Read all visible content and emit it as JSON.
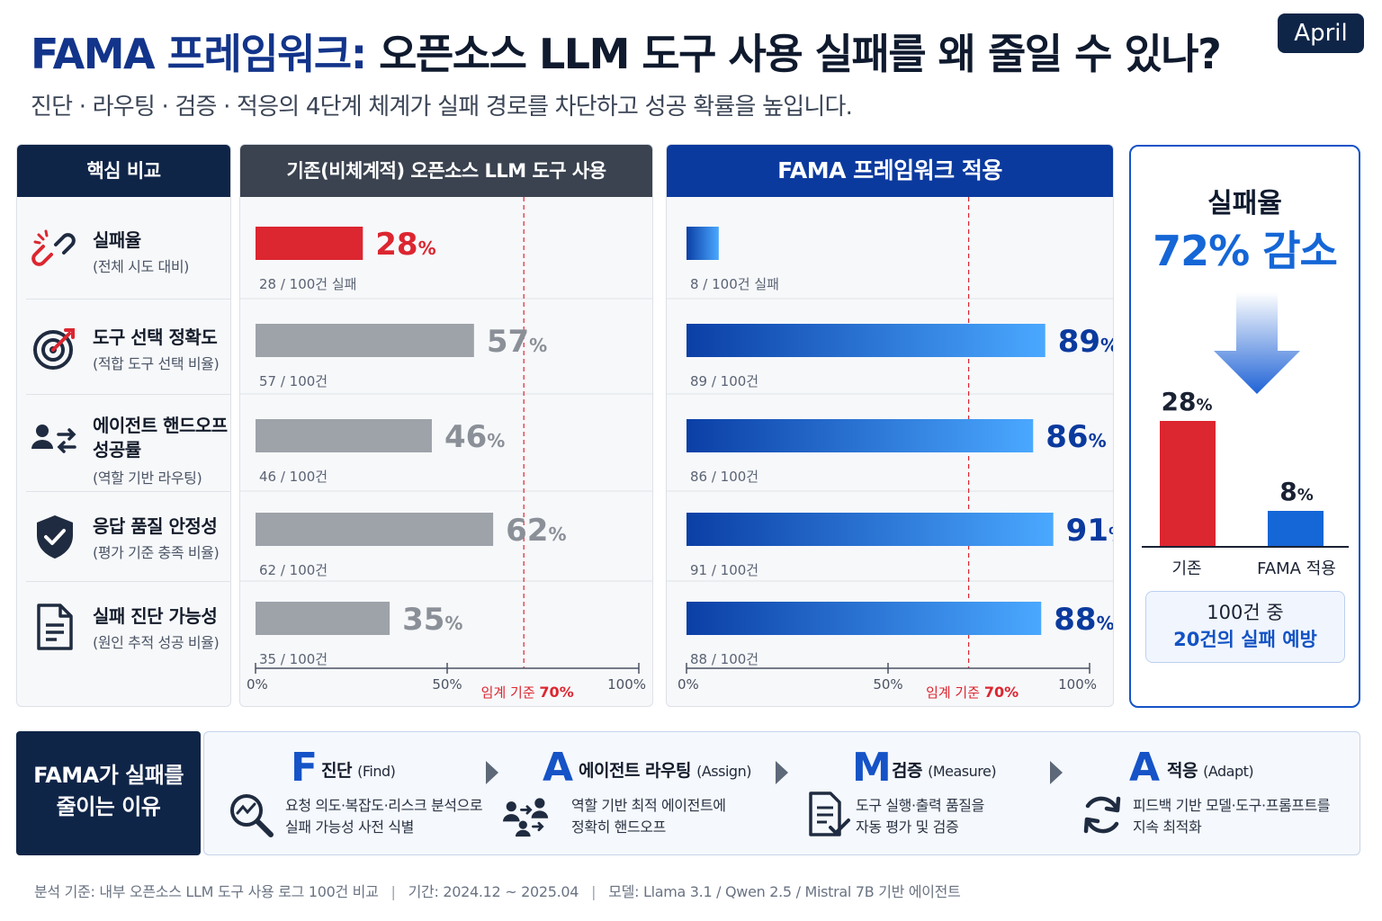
{
  "header": {
    "title_accent": "FAMA 프레임워크:",
    "title_rest": "오픈소스 LLM 도구 사용 실패를 왜 줄일 수 있나?",
    "badge": "April",
    "subtitle": "진단 · 라우팅 · 검증 · 적응의 4단계 체계가 실패 경로를 차단하고 성공 확률을 높입니다."
  },
  "panels": {
    "metrics_title": "핵심 비교",
    "baseline_title": "기존(비체계적) 오픈소스 LLM 도구 사용",
    "fama_title": "FAMA 프레임워크 적용"
  },
  "metrics": [
    {
      "name": "실패율",
      "desc": "(전체 시도 대비)",
      "icon": "broken-link-icon"
    },
    {
      "name": "도구 선택 정확도",
      "desc": "(적합 도구 선택 비율)",
      "icon": "target-icon"
    },
    {
      "name": "에이전트 핸드오프",
      "name2": "성공률",
      "desc": "(역할 기반 라우팅)",
      "icon": "handoff-icon"
    },
    {
      "name": "응답 품질 안정성",
      "desc": "(평가 기준 충족 비율)",
      "icon": "shield-check-icon"
    },
    {
      "name": "실패 진단 가능성",
      "desc": "(원인 추적 성공 비율)",
      "icon": "document-icon"
    }
  ],
  "chart_data": [
    {
      "type": "bar",
      "orientation": "horizontal",
      "name": "baseline",
      "categories": [
        "실패율",
        "도구 선택 정확도",
        "에이전트 핸드오프 성공률",
        "응답 품질 안정성",
        "실패 진단 가능성"
      ],
      "values": [
        28,
        57,
        46,
        62,
        35
      ],
      "value_unit": "%",
      "show_value_labels": [
        true,
        true,
        true,
        true,
        true
      ],
      "sublabels": [
        "28 / 100건 실패",
        "57 / 100건",
        "46 / 100건",
        "62 / 100건",
        "35 / 100건"
      ],
      "colors": [
        "#dc2630",
        "#9ea3aa",
        "#9ea3aa",
        "#9ea3aa",
        "#9ea3aa"
      ],
      "highlight_color": "#dc2630",
      "xlim": [
        0,
        100
      ],
      "ticks": [
        "0%",
        "50%",
        "100%"
      ],
      "threshold": {
        "value": 70,
        "label": "임계 기준",
        "value_label": "70%",
        "color": "#dc2630"
      }
    },
    {
      "type": "bar",
      "orientation": "horizontal",
      "name": "fama",
      "categories": [
        "실패율",
        "도구 선택 정확도",
        "에이전트 핸드오프 성공률",
        "응답 품질 안정성",
        "실패 진단 가능성"
      ],
      "values": [
        8,
        89,
        86,
        91,
        88
      ],
      "value_unit": "%",
      "show_value_labels": [
        false,
        true,
        true,
        true,
        true
      ],
      "sublabels": [
        "8 / 100건 실패",
        "89 / 100건",
        "86 / 100건",
        "91 / 100건",
        "88 / 100건"
      ],
      "gradient": [
        "#0b3fa6",
        "#4aa8ff"
      ],
      "value_color": "#0b3a9e",
      "xlim": [
        0,
        100
      ],
      "ticks": [
        "0%",
        "50%",
        "100%"
      ],
      "threshold": {
        "value": 70,
        "label": "임계 기준",
        "value_label": "70%",
        "color": "#dc2630"
      }
    },
    {
      "type": "bar",
      "name": "failure-rate-comparison",
      "categories": [
        "기존",
        "FAMA 적용"
      ],
      "values": [
        28,
        8
      ],
      "value_unit": "%",
      "colors": [
        "#dc2630",
        "#1566d6"
      ],
      "ylim": [
        0,
        35
      ]
    }
  ],
  "result": {
    "label": "실패율",
    "value": "72% 감소",
    "note_line1": "100건 중",
    "note_line2": "20건의 실패 예방"
  },
  "why": {
    "line1": "FAMA가 실패를",
    "line2": "줄이는 이유"
  },
  "steps": [
    {
      "letter": "F",
      "title": "진단",
      "en": "(Find)",
      "desc1": "요청 의도·복잡도·리스크 분석으로",
      "desc2": "실패 가능성 사전 식별",
      "icon": "search-diagnosis-icon"
    },
    {
      "letter": "A",
      "title": "에이전트 라우팅",
      "en": "(Assign)",
      "desc1": "역할 기반 최적 에이전트에",
      "desc2": "정확히 핸드오프",
      "icon": "agents-routing-icon"
    },
    {
      "letter": "M",
      "title": "검증",
      "en": "(Measure)",
      "desc1": "도구 실행·출력 품질을",
      "desc2": "자동 평가 및 검증",
      "icon": "checklist-icon"
    },
    {
      "letter": "A",
      "title": "적응",
      "en": "(Adapt)",
      "desc1": "피드백 기반 모델·도구·프롬프트를",
      "desc2": "지속 최적화",
      "icon": "refresh-icon"
    }
  ],
  "footer": {
    "basis": "분석 기준:  내부 오픈소스 LLM 도구 사용 로그 100건 비교",
    "period": "기간:  2024.12 ~ 2025.04",
    "model": "모델:  Llama 3.1 / Qwen 2.5 / Mistral 7B 기반 에이전트"
  }
}
